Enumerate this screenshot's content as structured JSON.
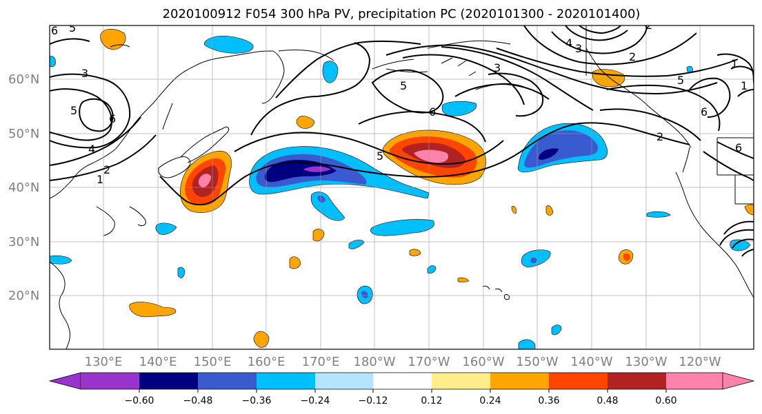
{
  "title": "2020100912 F054 300 hPa PV, precipitation PC (2020101300 - 2020101400)",
  "lat_labels": [
    "60°N",
    "50°N",
    "40°N",
    "30°N",
    "20°N"
  ],
  "lon_labels": [
    "130°E",
    "140°E",
    "150°E",
    "160°E",
    "170°E",
    "180°W",
    "170°W",
    "160°W",
    "150°W",
    "140°W",
    "130°W",
    "120°W"
  ],
  "contour_labels": [
    "5",
    "3",
    "4",
    "5",
    "6",
    "2",
    "6",
    "6",
    "6",
    "5",
    "4",
    "3",
    "2",
    "3",
    "5",
    "1",
    "5",
    "6",
    "2",
    "1",
    "2",
    "1"
  ],
  "colorbar": {
    "ticks": [
      "−0.60",
      "−0.48",
      "−0.36",
      "−0.24",
      "−0.12",
      "0.12",
      "0.24",
      "0.36",
      "0.48",
      "0.60"
    ],
    "colors": [
      "#9933cc",
      "#000080",
      "#3a5bd0",
      "#00bfff",
      "#b3e5fc",
      "#ffffff",
      "#ffec8b",
      "#ffa500",
      "#ff4500",
      "#b22222",
      "#ff82ab"
    ]
  },
  "palette": {
    "neg_dark": "#000080",
    "neg_mid": "#3a5bd0",
    "neg_light": "#00bfff",
    "neg_pale": "#b3e5fc",
    "pos_pale": "#ffec8b",
    "pos_light": "#ffa500",
    "pos_mid": "#ff4500",
    "pos_dark": "#b22222",
    "pos_max": "#ff82ab"
  }
}
